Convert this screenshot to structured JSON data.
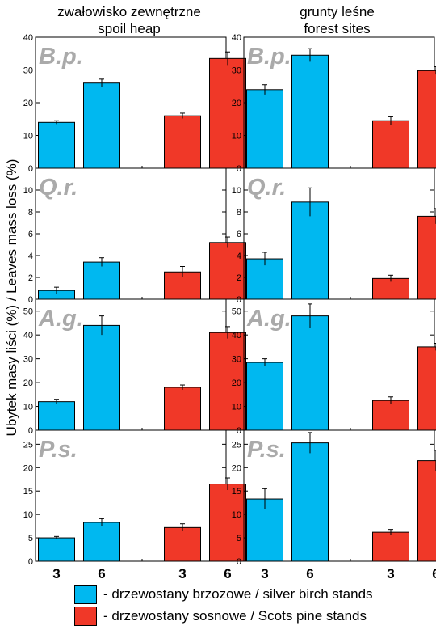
{
  "columns": [
    {
      "title_line1": "zwałowisko zewnętrzne",
      "title_line2": "spoil heap"
    },
    {
      "title_line1": "grunty leśne",
      "title_line2": "forest sites"
    }
  ],
  "ylabel": "Ubytek masy liści (%) / Leaves mass loss (%)",
  "legend": [
    {
      "label": "- drzewostany brzozowe / silver birch stands",
      "color": "#00b8f0"
    },
    {
      "label": "- drzewostany sosnowe / Scots pine stands",
      "color": "#f03828"
    }
  ],
  "colors": {
    "birch": "#00b8f0",
    "pine": "#f03828",
    "species_label": "#aaaaaa"
  },
  "chart_data": {
    "type": "bar",
    "categories": [
      "3",
      "6",
      "3",
      "6"
    ],
    "bar_colors": [
      "birch",
      "birch",
      "pine",
      "pine"
    ],
    "grid": false,
    "panels": [
      {
        "species": "B.p.",
        "site": "spoil heap",
        "ylim": [
          0,
          40
        ],
        "yticks": [
          0,
          10,
          20,
          30,
          40
        ],
        "values": [
          14,
          26,
          16,
          33.5
        ],
        "errors": [
          0.5,
          1.2,
          0.8,
          2
        ]
      },
      {
        "species": "B.p.",
        "site": "forest sites",
        "ylim": [
          0,
          40
        ],
        "yticks": [
          0,
          10,
          20,
          30,
          40
        ],
        "values": [
          24,
          34.5,
          14.5,
          29.8
        ],
        "errors": [
          1.5,
          2,
          1.2,
          1.2
        ]
      },
      {
        "species": "Q.r.",
        "site": "spoil heap",
        "ylim": [
          0,
          12
        ],
        "yticks": [
          0,
          2,
          4,
          6,
          8,
          10
        ],
        "values": [
          0.8,
          3.4,
          2.5,
          5.2
        ],
        "errors": [
          0.3,
          0.4,
          0.5,
          0.5
        ]
      },
      {
        "species": "Q.r.",
        "site": "forest sites",
        "ylim": [
          0,
          12
        ],
        "yticks": [
          0,
          2,
          4,
          6,
          8,
          10
        ],
        "values": [
          3.7,
          8.9,
          1.9,
          7.6
        ],
        "errors": [
          0.6,
          1.3,
          0.3,
          0.7
        ]
      },
      {
        "species": "A.g.",
        "site": "spoil heap",
        "ylim": [
          0,
          55
        ],
        "yticks": [
          0,
          10,
          20,
          30,
          40,
          50
        ],
        "values": [
          12,
          44,
          18,
          41
        ],
        "errors": [
          1,
          4,
          1,
          2.5
        ]
      },
      {
        "species": "A.g.",
        "site": "forest sites",
        "ylim": [
          0,
          55
        ],
        "yticks": [
          0,
          10,
          20,
          30,
          40,
          50
        ],
        "values": [
          28.5,
          48,
          12.5,
          35
        ],
        "errors": [
          1.5,
          5,
          1.5,
          1.5
        ]
      },
      {
        "species": "P.s.",
        "site": "spoil heap",
        "ylim": [
          0,
          28
        ],
        "yticks": [
          0,
          5,
          10,
          15,
          20,
          25
        ],
        "values": [
          5,
          8.3,
          7.2,
          16.5
        ],
        "errors": [
          0.3,
          0.8,
          0.8,
          1.3
        ]
      },
      {
        "species": "P.s.",
        "site": "forest sites",
        "ylim": [
          0,
          28
        ],
        "yticks": [
          0,
          5,
          10,
          15,
          20,
          25
        ],
        "values": [
          13.3,
          25.3,
          6.2,
          21.5
        ],
        "errors": [
          2.2,
          2.2,
          0.6,
          2.2
        ]
      }
    ]
  }
}
